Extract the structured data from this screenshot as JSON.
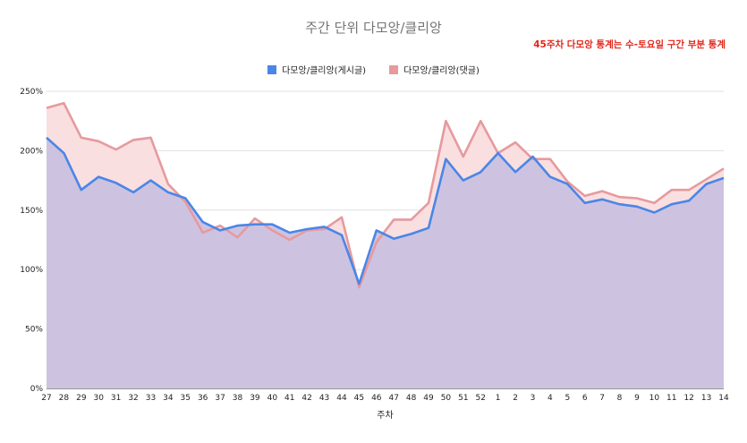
{
  "chart_data": {
    "type": "area",
    "title": "주간 단위 다모앙/클리앙",
    "annotation": "45주차 다모앙 통계는 수-토요일 구간 부분 통계",
    "xlabel": "주차",
    "ylabel": "",
    "ylim": [
      0,
      250
    ],
    "y_ticks": [
      "0%",
      "50%",
      "100%",
      "150%",
      "200%",
      "250%"
    ],
    "y_tick_values": [
      0,
      50,
      100,
      150,
      200,
      250
    ],
    "grid": true,
    "legend_position": "top",
    "categories": [
      "27",
      "28",
      "29",
      "30",
      "31",
      "32",
      "33",
      "34",
      "35",
      "36",
      "37",
      "38",
      "39",
      "40",
      "41",
      "42",
      "43",
      "44",
      "45",
      "46",
      "47",
      "48",
      "49",
      "50",
      "51",
      "52",
      "1",
      "2",
      "3",
      "4",
      "5",
      "6",
      "7",
      "8",
      "9",
      "10",
      "11",
      "12",
      "13",
      "14"
    ],
    "series": [
      {
        "name": "다모앙/클리앙(게시글)",
        "color": "#4a86e8",
        "fill": "#cdc3e0",
        "values": [
          211,
          198,
          167,
          178,
          173,
          165,
          175,
          165,
          160,
          140,
          133,
          137,
          138,
          138,
          131,
          134,
          136,
          129,
          88,
          133,
          126,
          130,
          135,
          193,
          175,
          182,
          198,
          182,
          195,
          178,
          172,
          156,
          159,
          155,
          153,
          148,
          155,
          158,
          172,
          177
        ]
      },
      {
        "name": "다모앙/클리앙(댓글)",
        "color": "#e69a9e",
        "fill": "#f9dfe0",
        "values": [
          236,
          240,
          211,
          208,
          201,
          209,
          211,
          172,
          157,
          131,
          137,
          127,
          143,
          133,
          125,
          133,
          134,
          144,
          85,
          123,
          142,
          142,
          156,
          225,
          195,
          225,
          198,
          207,
          193,
          193,
          174,
          162,
          166,
          161,
          160,
          156,
          167,
          167,
          176,
          185
        ]
      }
    ]
  }
}
